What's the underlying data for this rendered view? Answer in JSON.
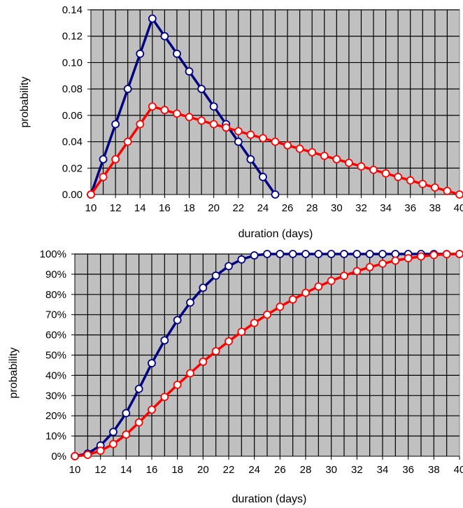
{
  "chart_data": [
    {
      "type": "line",
      "xlabel": "duration (days)",
      "ylabel": "probability",
      "xlim": [
        10,
        40
      ],
      "ylim": [
        0,
        0.14
      ],
      "x_ticks": [
        "10",
        "12",
        "14",
        "16",
        "18",
        "20",
        "22",
        "24",
        "26",
        "28",
        "30",
        "32",
        "34",
        "36",
        "38",
        "40"
      ],
      "y_ticks": [
        "0.00",
        "0.02",
        "0.04",
        "0.06",
        "0.08",
        "0.10",
        "0.12",
        "0.14"
      ],
      "grid": true,
      "plot_background": "#c0c0c0",
      "series": [
        {
          "color": "#000080",
          "x": [
            10,
            11,
            12,
            13,
            14,
            15,
            16,
            17,
            18,
            19,
            20,
            21,
            22,
            23,
            24,
            25
          ],
          "y": [
            0,
            0.0267,
            0.0533,
            0.08,
            0.1067,
            0.1333,
            0.12,
            0.1067,
            0.0933,
            0.08,
            0.0667,
            0.0533,
            0.04,
            0.0267,
            0.0133,
            0
          ]
        },
        {
          "color": "#ff0000",
          "x": [
            10,
            11,
            12,
            13,
            14,
            15,
            16,
            17,
            18,
            19,
            20,
            21,
            22,
            23,
            24,
            25,
            26,
            27,
            28,
            29,
            30,
            31,
            32,
            33,
            34,
            35,
            36,
            37,
            38,
            39,
            40
          ],
          "y": [
            0,
            0.0133,
            0.0267,
            0.04,
            0.0533,
            0.0667,
            0.064,
            0.0613,
            0.0587,
            0.056,
            0.0533,
            0.0507,
            0.048,
            0.0453,
            0.0427,
            0.04,
            0.0373,
            0.0347,
            0.032,
            0.0293,
            0.0267,
            0.024,
            0.0213,
            0.0187,
            0.016,
            0.0133,
            0.0107,
            0.008,
            0.0053,
            0.0027,
            0
          ]
        }
      ]
    },
    {
      "type": "line",
      "xlabel": "duration (days)",
      "ylabel": "probability",
      "xlim": [
        10,
        40
      ],
      "ylim": [
        0,
        100
      ],
      "x_ticks": [
        "10",
        "12",
        "14",
        "16",
        "18",
        "20",
        "22",
        "24",
        "26",
        "28",
        "30",
        "32",
        "34",
        "36",
        "38",
        "40"
      ],
      "y_ticks": [
        "0%",
        "10%",
        "20%",
        "30%",
        "40%",
        "50%",
        "60%",
        "70%",
        "80%",
        "90%",
        "100%"
      ],
      "grid": true,
      "plot_background": "#c0c0c0",
      "series": [
        {
          "color": "#000080",
          "x": [
            10,
            11,
            12,
            13,
            14,
            15,
            16,
            17,
            18,
            19,
            20,
            21,
            22,
            23,
            24,
            25,
            26,
            27,
            28,
            29,
            30,
            31,
            32,
            33,
            34,
            35,
            36,
            37,
            38,
            39,
            40
          ],
          "y": [
            0,
            1.3,
            5.3,
            12,
            21.3,
            33.3,
            46,
            57.3,
            67.3,
            76,
            83.3,
            89.3,
            94,
            97.3,
            99.3,
            100,
            100,
            100,
            100,
            100,
            100,
            100,
            100,
            100,
            100,
            100,
            100,
            100,
            100,
            100,
            100
          ]
        },
        {
          "color": "#ff0000",
          "x": [
            10,
            11,
            12,
            13,
            14,
            15,
            16,
            17,
            18,
            19,
            20,
            21,
            22,
            23,
            24,
            25,
            26,
            27,
            28,
            29,
            30,
            31,
            32,
            33,
            34,
            35,
            36,
            37,
            38,
            39,
            40
          ],
          "y": [
            0,
            0.7,
            2.7,
            6,
            10.7,
            16.7,
            23,
            29.3,
            35.3,
            41,
            46.7,
            51.9,
            56.8,
            61.5,
            65.9,
            70,
            73.9,
            77.5,
            80.8,
            83.9,
            86.7,
            89.2,
            91.5,
            93.5,
            95.2,
            96.7,
            97.9,
            98.8,
            99.5,
            99.9,
            100
          ]
        }
      ]
    }
  ]
}
